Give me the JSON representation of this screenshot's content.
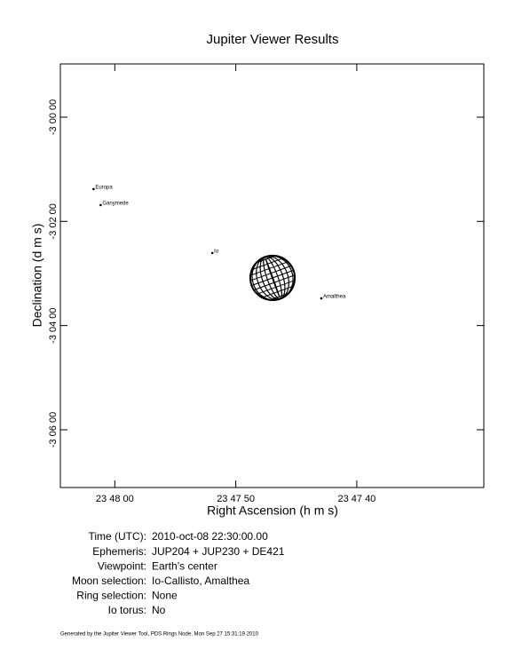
{
  "chart_data": {
    "type": "scatter",
    "title": "Jupiter Viewer Results",
    "xlabel": "Right Ascension (h m s)",
    "ylabel": "Declination (d m s)",
    "xlim": [
      85684.5,
      85649.5
    ],
    "ylim": [
      -11226.5,
      -10738.7
    ],
    "xticks": [
      {
        "value": 85680,
        "label": "23 48 00"
      },
      {
        "value": 85670,
        "label": "23 47 50"
      },
      {
        "value": 85660,
        "label": "23 47 40"
      }
    ],
    "yticks": [
      {
        "value": -10800,
        "label": "-3 00 00"
      },
      {
        "value": -10920,
        "label": "-3 02 00"
      },
      {
        "value": -11040,
        "label": "-3 04 00"
      },
      {
        "value": -11160,
        "label": "-3 06 00"
      }
    ],
    "x": [
      85681.76,
      85681.17,
      85671.94,
      85662.93
    ],
    "y": [
      -10882.8,
      -10901.2,
      -10956.4,
      -11008.6
    ],
    "labels": [
      "Europa",
      "Ganymede",
      "Io",
      "Amalthea"
    ],
    "color": "#000000",
    "planet": {
      "x": 85666.96,
      "y": -10985.1,
      "radius": 25.6
    }
  },
  "info": [
    {
      "label": "Time (UTC):",
      "value": "2010-oct-08 22:30:00.00"
    },
    {
      "label": "Ephemeris:",
      "value": "JUP204 + JUP230 + DE421"
    },
    {
      "label": "Viewpoint:",
      "value": "Earth’s center"
    },
    {
      "label": "Moon selection:",
      "value": "Io-Callisto, Amalthea"
    },
    {
      "label": "Ring selection:",
      "value": "None"
    },
    {
      "label": "Io torus:",
      "value": "No"
    }
  ],
  "footer": "Generated by the Jupiter Viewer Tool, PDS Rings Node, Mon Sep 27 15:31:19 2010"
}
